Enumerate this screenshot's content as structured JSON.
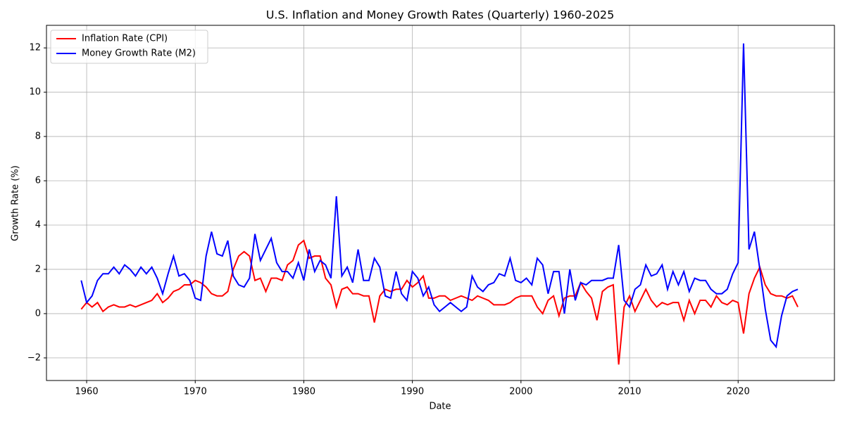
{
  "chart_data": {
    "type": "line",
    "title": "U.S. Inflation and Money Growth Rates (Quarterly) 1960-2025",
    "x_label": "Date",
    "y_label": "Growth Rate (%)",
    "x": [
      1959.5,
      1960,
      1960.5,
      1961,
      1961.5,
      1962,
      1962.5,
      1963,
      1963.5,
      1964,
      1964.5,
      1965,
      1965.5,
      1966,
      1966.5,
      1967,
      1967.5,
      1968,
      1968.5,
      1969,
      1969.5,
      1970,
      1970.5,
      1971,
      1971.5,
      1972,
      1972.5,
      1973,
      1973.5,
      1974,
      1974.5,
      1975,
      1975.5,
      1976,
      1976.5,
      1977,
      1977.5,
      1978,
      1978.5,
      1979,
      1979.5,
      1980,
      1980.5,
      1981,
      1981.5,
      1982,
      1982.5,
      1983,
      1983.5,
      1984,
      1984.5,
      1985,
      1985.5,
      1986,
      1986.5,
      1987,
      1987.5,
      1988,
      1988.5,
      1989,
      1989.5,
      1990,
      1990.5,
      1991,
      1991.5,
      1992,
      1992.5,
      1993,
      1993.5,
      1994,
      1994.5,
      1995,
      1995.5,
      1996,
      1996.5,
      1997,
      1997.5,
      1998,
      1998.5,
      1999,
      1999.5,
      2000,
      2000.5,
      2001,
      2001.5,
      2002,
      2002.5,
      2003,
      2003.5,
      2004,
      2004.5,
      2005,
      2005.5,
      2006,
      2006.5,
      2007,
      2007.5,
      2008,
      2008.5,
      2009,
      2009.5,
      2010,
      2010.5,
      2011,
      2011.5,
      2012,
      2012.5,
      2013,
      2013.5,
      2014,
      2014.5,
      2015,
      2015.5,
      2016,
      2016.5,
      2017,
      2017.5,
      2018,
      2018.5,
      2019,
      2019.5,
      2020,
      2020.5,
      2021,
      2021.5,
      2022,
      2022.5,
      2023,
      2023.5,
      2024,
      2024.5,
      2025,
      2025.5
    ],
    "series": [
      {
        "name": "Inflation Rate (CPI)",
        "color": "#ff0000",
        "values": [
          0.2,
          0.5,
          0.3,
          0.5,
          0.1,
          0.3,
          0.4,
          0.3,
          0.3,
          0.4,
          0.3,
          0.4,
          0.5,
          0.6,
          0.9,
          0.5,
          0.7,
          1.0,
          1.1,
          1.3,
          1.3,
          1.5,
          1.4,
          1.2,
          0.9,
          0.8,
          0.8,
          1.0,
          2.0,
          2.6,
          2.8,
          2.6,
          1.5,
          1.6,
          1.0,
          1.6,
          1.6,
          1.5,
          2.2,
          2.4,
          3.1,
          3.3,
          2.5,
          2.6,
          2.6,
          1.6,
          1.3,
          0.3,
          1.1,
          1.2,
          0.9,
          0.9,
          0.8,
          0.8,
          -0.4,
          0.8,
          1.1,
          1.0,
          1.1,
          1.1,
          1.5,
          1.2,
          1.4,
          1.7,
          0.7,
          0.7,
          0.8,
          0.8,
          0.6,
          0.7,
          0.8,
          0.7,
          0.6,
          0.8,
          0.7,
          0.6,
          0.4,
          0.4,
          0.4,
          0.5,
          0.7,
          0.8,
          0.8,
          0.8,
          0.3,
          0.0,
          0.6,
          0.8,
          -0.1,
          0.7,
          0.8,
          0.8,
          1.4,
          1.0,
          0.7,
          -0.3,
          1.0,
          1.2,
          1.3,
          -2.3,
          0.3,
          0.8,
          0.1,
          0.6,
          1.1,
          0.6,
          0.3,
          0.5,
          0.4,
          0.5,
          0.5,
          -0.3,
          0.6,
          0.0,
          0.6,
          0.6,
          0.3,
          0.8,
          0.5,
          0.4,
          0.6,
          0.5,
          -0.9,
          0.9,
          1.6,
          2.1,
          1.3,
          0.9,
          0.8,
          0.8,
          0.7,
          0.8,
          0.3
        ]
      },
      {
        "name": "Money Growth Rate (M2)",
        "color": "#0000ff",
        "values": [
          1.5,
          0.5,
          0.8,
          1.5,
          1.8,
          1.8,
          2.1,
          1.8,
          2.2,
          2.0,
          1.7,
          2.1,
          1.8,
          2.1,
          1.6,
          0.9,
          1.8,
          2.6,
          1.7,
          1.8,
          1.5,
          0.7,
          0.6,
          2.6,
          3.7,
          2.7,
          2.6,
          3.3,
          1.7,
          1.3,
          1.2,
          1.6,
          3.6,
          2.4,
          2.9,
          3.4,
          2.3,
          1.9,
          1.9,
          1.6,
          2.3,
          1.5,
          2.9,
          1.9,
          2.4,
          2.2,
          1.6,
          5.3,
          1.7,
          2.1,
          1.4,
          2.9,
          1.5,
          1.5,
          2.5,
          2.1,
          0.8,
          0.7,
          1.9,
          0.9,
          0.6,
          1.9,
          1.6,
          0.8,
          1.2,
          0.4,
          0.1,
          0.3,
          0.5,
          0.3,
          0.1,
          0.3,
          1.7,
          1.2,
          1.0,
          1.3,
          1.4,
          1.8,
          1.7,
          2.5,
          1.5,
          1.4,
          1.6,
          1.3,
          2.5,
          2.2,
          0.9,
          1.9,
          1.9,
          0.0,
          2.0,
          0.6,
          1.4,
          1.3,
          1.5,
          1.5,
          1.5,
          1.6,
          1.6,
          3.1,
          0.6,
          0.3,
          1.1,
          1.3,
          2.2,
          1.7,
          1.8,
          2.2,
          1.1,
          1.9,
          1.3,
          1.9,
          1.0,
          1.6,
          1.5,
          1.5,
          1.1,
          0.9,
          0.9,
          1.1,
          1.8,
          2.3,
          12.2,
          2.9,
          3.7,
          2.0,
          0.2,
          -1.2,
          -1.5,
          -0.1,
          0.8,
          1.0,
          1.1
        ]
      }
    ],
    "xlim": [
      1956.3,
      2028.87
    ],
    "ylim": [
      -3.02,
      13.02
    ],
    "xticks": [
      1960,
      1970,
      1980,
      1990,
      2000,
      2010,
      2020
    ],
    "yticks": [
      {
        "value": -2,
        "label": "−2"
      },
      0,
      2,
      4,
      6,
      8,
      10,
      12
    ],
    "grid": true,
    "legend": "upper left"
  }
}
